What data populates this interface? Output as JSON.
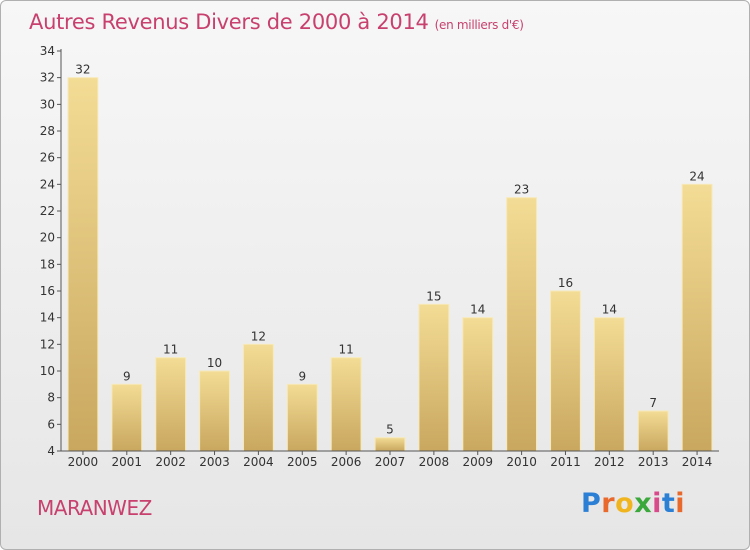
{
  "title": "Autres Revenus Divers de 2000 à 2014",
  "title_unit": "(en milliers d'€)",
  "commune": "MARANWEZ",
  "logo": {
    "text": "Proxiti",
    "letter_colors": [
      "#2b7fd4",
      "#e8692b",
      "#f0b51e",
      "#3aa83a",
      "#d84a8a",
      "#2b7fd4",
      "#e8692b"
    ]
  },
  "colors": {
    "bar_light": "#f3dc95",
    "bar_dark": "#c9a75f",
    "title": "#c8406e"
  },
  "chart_data": {
    "type": "bar",
    "title": "Autres Revenus Divers de 2000 à 2014",
    "xlabel": "",
    "ylabel": "",
    "categories": [
      "2000",
      "2001",
      "2002",
      "2003",
      "2004",
      "2005",
      "2006",
      "2007",
      "2008",
      "2009",
      "2010",
      "2011",
      "2012",
      "2013",
      "2014"
    ],
    "values": [
      32,
      9,
      11,
      10,
      12,
      9,
      11,
      5,
      15,
      14,
      23,
      16,
      14,
      7,
      24
    ],
    "ylim": [
      4,
      34
    ],
    "yticks": [
      4,
      6,
      8,
      10,
      12,
      14,
      16,
      18,
      20,
      22,
      24,
      26,
      28,
      30,
      32,
      34
    ],
    "grid": false,
    "legend": "none"
  }
}
